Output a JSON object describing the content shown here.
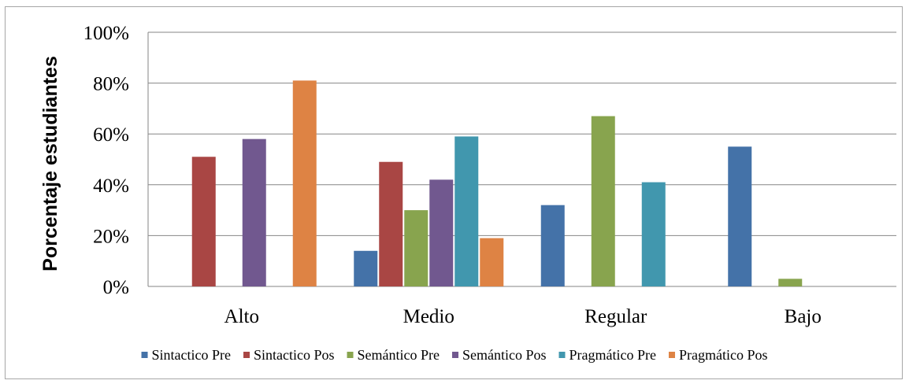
{
  "chart_data": {
    "type": "bar",
    "title": "",
    "xlabel": "",
    "ylabel": "Porcentaje estudiantes",
    "ylim": [
      0,
      100
    ],
    "yticks": [
      "0%",
      "20%",
      "40%",
      "60%",
      "80%",
      "100%"
    ],
    "grid": true,
    "legend": "bottom",
    "categories": [
      "Alto",
      "Medio",
      "Regular",
      "Bajo"
    ],
    "series": [
      {
        "name": "Sintactico Pre",
        "color": "#4472a8",
        "values": [
          0,
          14,
          32,
          55
        ]
      },
      {
        "name": "Sintactico Pos",
        "color": "#a94644",
        "values": [
          51,
          49,
          0,
          0
        ]
      },
      {
        "name": "Semántico Pre",
        "color": "#88a44e",
        "values": [
          0,
          30,
          67,
          3
        ]
      },
      {
        "name": "Semántico Pos",
        "color": "#71588f",
        "values": [
          58,
          42,
          0,
          0
        ]
      },
      {
        "name": "Pragmático Pre",
        "color": "#4197ae",
        "values": [
          0,
          59,
          41,
          0
        ]
      },
      {
        "name": "Pragmático Pos",
        "color": "#de8344",
        "values": [
          81,
          19,
          0,
          0
        ]
      }
    ]
  }
}
